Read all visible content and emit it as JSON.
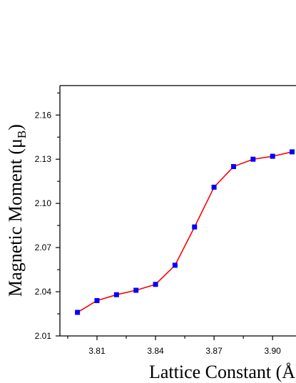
{
  "chart_data": {
    "type": "line",
    "title": "",
    "xlabel": "Lattice Constant (Å)",
    "ylabel_main": "Magnetic Moment (μ",
    "ylabel_sub": "B",
    "ylabel_close": ")",
    "xlim": [
      3.791,
      3.912
    ],
    "ylim": [
      2.01,
      2.18
    ],
    "x_ticks": [
      3.81,
      3.84,
      3.87,
      3.9
    ],
    "x_tick_labels": [
      "3.81",
      "3.84",
      "3.87",
      "3.90"
    ],
    "y_ticks": [
      2.01,
      2.04,
      2.07,
      2.1,
      2.13,
      2.16
    ],
    "y_tick_labels": [
      "2.01",
      "2.04",
      "2.07",
      "2.10",
      "2.13",
      "2.16"
    ],
    "grid": false,
    "series": [
      {
        "line_color": "#ff0000",
        "marker_color": "#0000ff",
        "marker": "square",
        "x": [
          3.8,
          3.81,
          3.82,
          3.83,
          3.84,
          3.85,
          3.86,
          3.87,
          3.88,
          3.89,
          3.9,
          3.91
        ],
        "y": [
          2.026,
          2.034,
          2.038,
          2.041,
          2.045,
          2.058,
          2.084,
          2.111,
          2.125,
          2.13,
          2.132,
          2.135
        ]
      }
    ]
  }
}
